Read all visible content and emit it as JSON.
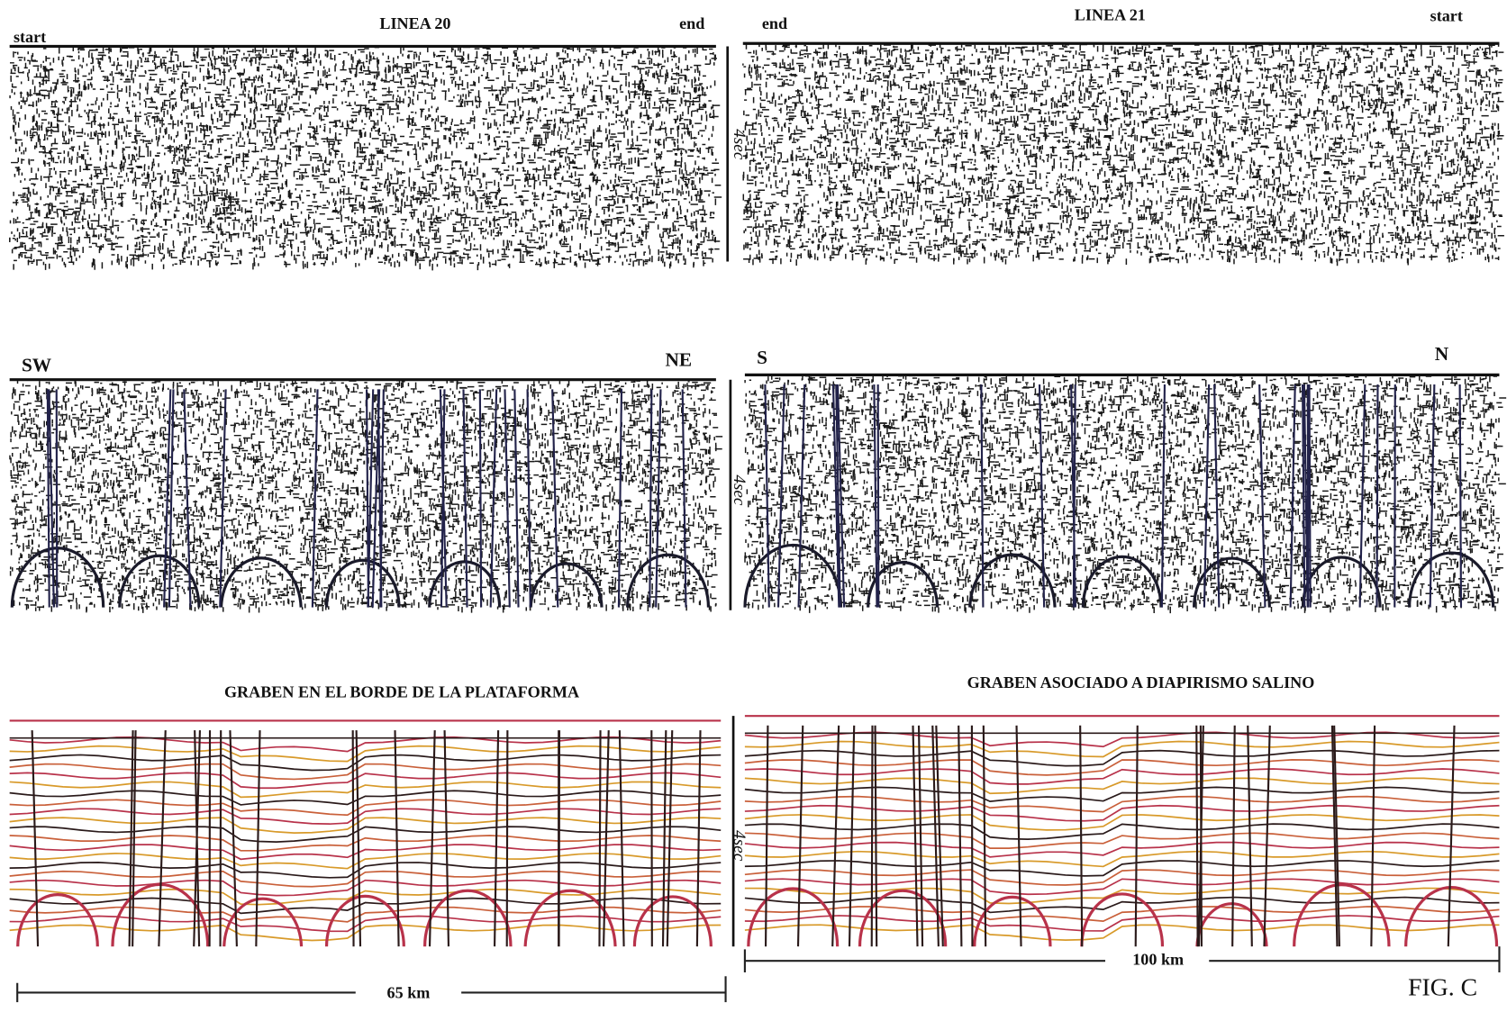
{
  "panels": {
    "top": {
      "left": {
        "title": "LINEA 20",
        "start": "start",
        "end": "end"
      },
      "right": {
        "title": "LINEA 21",
        "end": "end",
        "start": "start"
      },
      "time_label": "4sec"
    },
    "middle": {
      "left": {
        "left_dir": "SW",
        "right_dir": "NE"
      },
      "right": {
        "left_dir": "S",
        "right_dir": "N"
      },
      "time_label": "4sec"
    },
    "bottom": {
      "left": {
        "title": "GRABEN EN EL BORDE DE LA PLATAFORMA"
      },
      "right": {
        "title": "GRABEN ASOCIADO A DIAPIRISMO SALINO"
      },
      "time_label": "4sec"
    }
  },
  "scale_bars": {
    "left": "65 km",
    "right": "100 km"
  },
  "figure_label": "FIG. C"
}
